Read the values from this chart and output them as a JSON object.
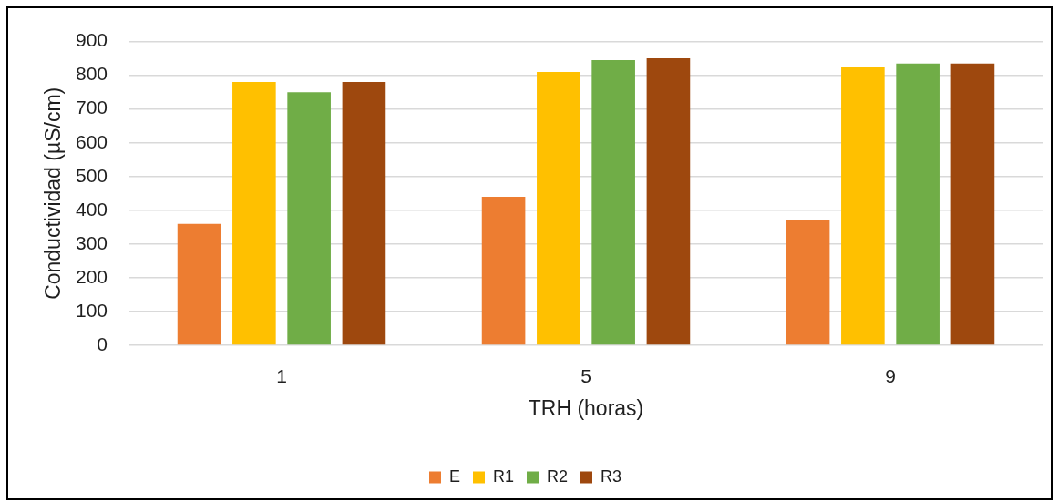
{
  "chart_data": {
    "type": "bar",
    "xlabel": "TRH (horas)",
    "ylabel": "Conductividad (µS/cm)",
    "categories": [
      "1",
      "5",
      "9"
    ],
    "series": [
      {
        "name": "E",
        "color": "#ed7d31",
        "values": [
          360,
          440,
          370
        ]
      },
      {
        "name": "R1",
        "color": "#ffc000",
        "values": [
          780,
          810,
          825
        ]
      },
      {
        "name": "R2",
        "color": "#70ad47",
        "values": [
          750,
          845,
          835
        ]
      },
      {
        "name": "R3",
        "color": "#9e480e",
        "values": [
          780,
          850,
          835
        ]
      }
    ],
    "ylim": [
      0,
      900
    ],
    "yticks": [
      0,
      100,
      200,
      300,
      400,
      500,
      600,
      700,
      800,
      900
    ],
    "grid": "y",
    "legend": "bottom"
  }
}
